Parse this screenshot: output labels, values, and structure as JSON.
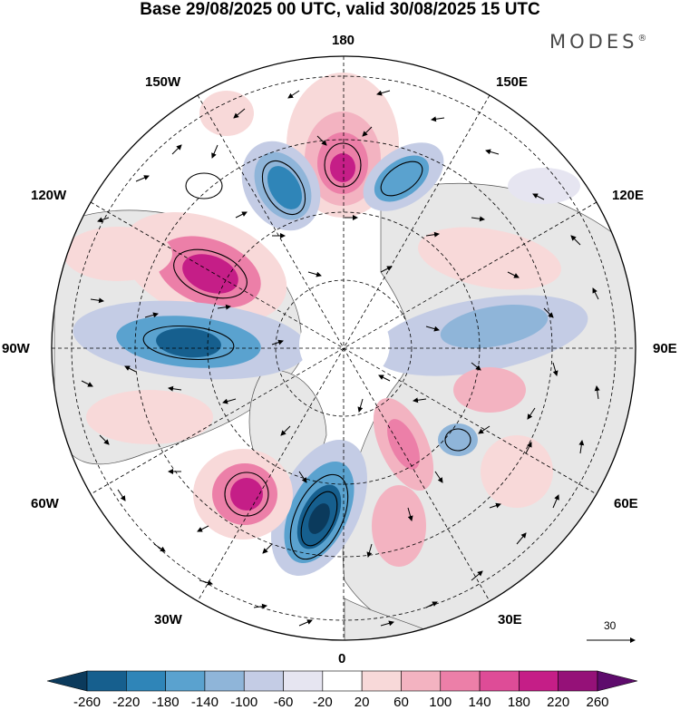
{
  "title": "Base 29/08/2025 00 UTC, valid 30/08/2025 15 UTC",
  "brand": "MODES",
  "brand_mark": "®",
  "longitude_labels": {
    "n180": "180",
    "w150": "150W",
    "e150": "150E",
    "w120": "120W",
    "e120": "120E",
    "w90": "90W",
    "e90": "90E",
    "w60": "60W",
    "e60": "60E",
    "w30": "30W",
    "e30": "30E",
    "zero": "0"
  },
  "reference_vector": "30",
  "colorbar": {
    "ticks": [
      "-260",
      "-220",
      "-180",
      "-140",
      "-100",
      "-60",
      "-20",
      "20",
      "60",
      "100",
      "140",
      "180",
      "220",
      "260"
    ],
    "colors": [
      "#0b3a5c",
      "#165f8e",
      "#2f85b8",
      "#5aa2cf",
      "#8fb5d9",
      "#c4cce5",
      "#e6e5f1",
      "#ffffff",
      "#f8d9d9",
      "#f3b3c1",
      "#ec7fa8",
      "#de4c97",
      "#c51e87",
      "#951178",
      "#5e0b6c"
    ]
  },
  "map": {
    "projection": "north-polar-stereographic",
    "features": [
      {
        "name": "anomaly-high-180",
        "sign": "positive",
        "intensity": 180
      },
      {
        "name": "anomaly-low-150w",
        "sign": "negative",
        "intensity": -180
      },
      {
        "name": "anomaly-low-150e",
        "sign": "negative",
        "intensity": -140
      },
      {
        "name": "anomaly-high-110w",
        "sign": "positive",
        "intensity": 200
      },
      {
        "name": "anomaly-low-90w",
        "sign": "negative",
        "intensity": -220
      },
      {
        "name": "anomaly-low-20w",
        "sign": "negative",
        "intensity": -260
      },
      {
        "name": "anomaly-high-50w",
        "sign": "positive",
        "intensity": 200
      },
      {
        "name": "anomaly-high-30e",
        "sign": "positive",
        "intensity": 140
      },
      {
        "name": "anomaly-low-100e",
        "sign": "negative",
        "intensity": -100
      }
    ]
  }
}
